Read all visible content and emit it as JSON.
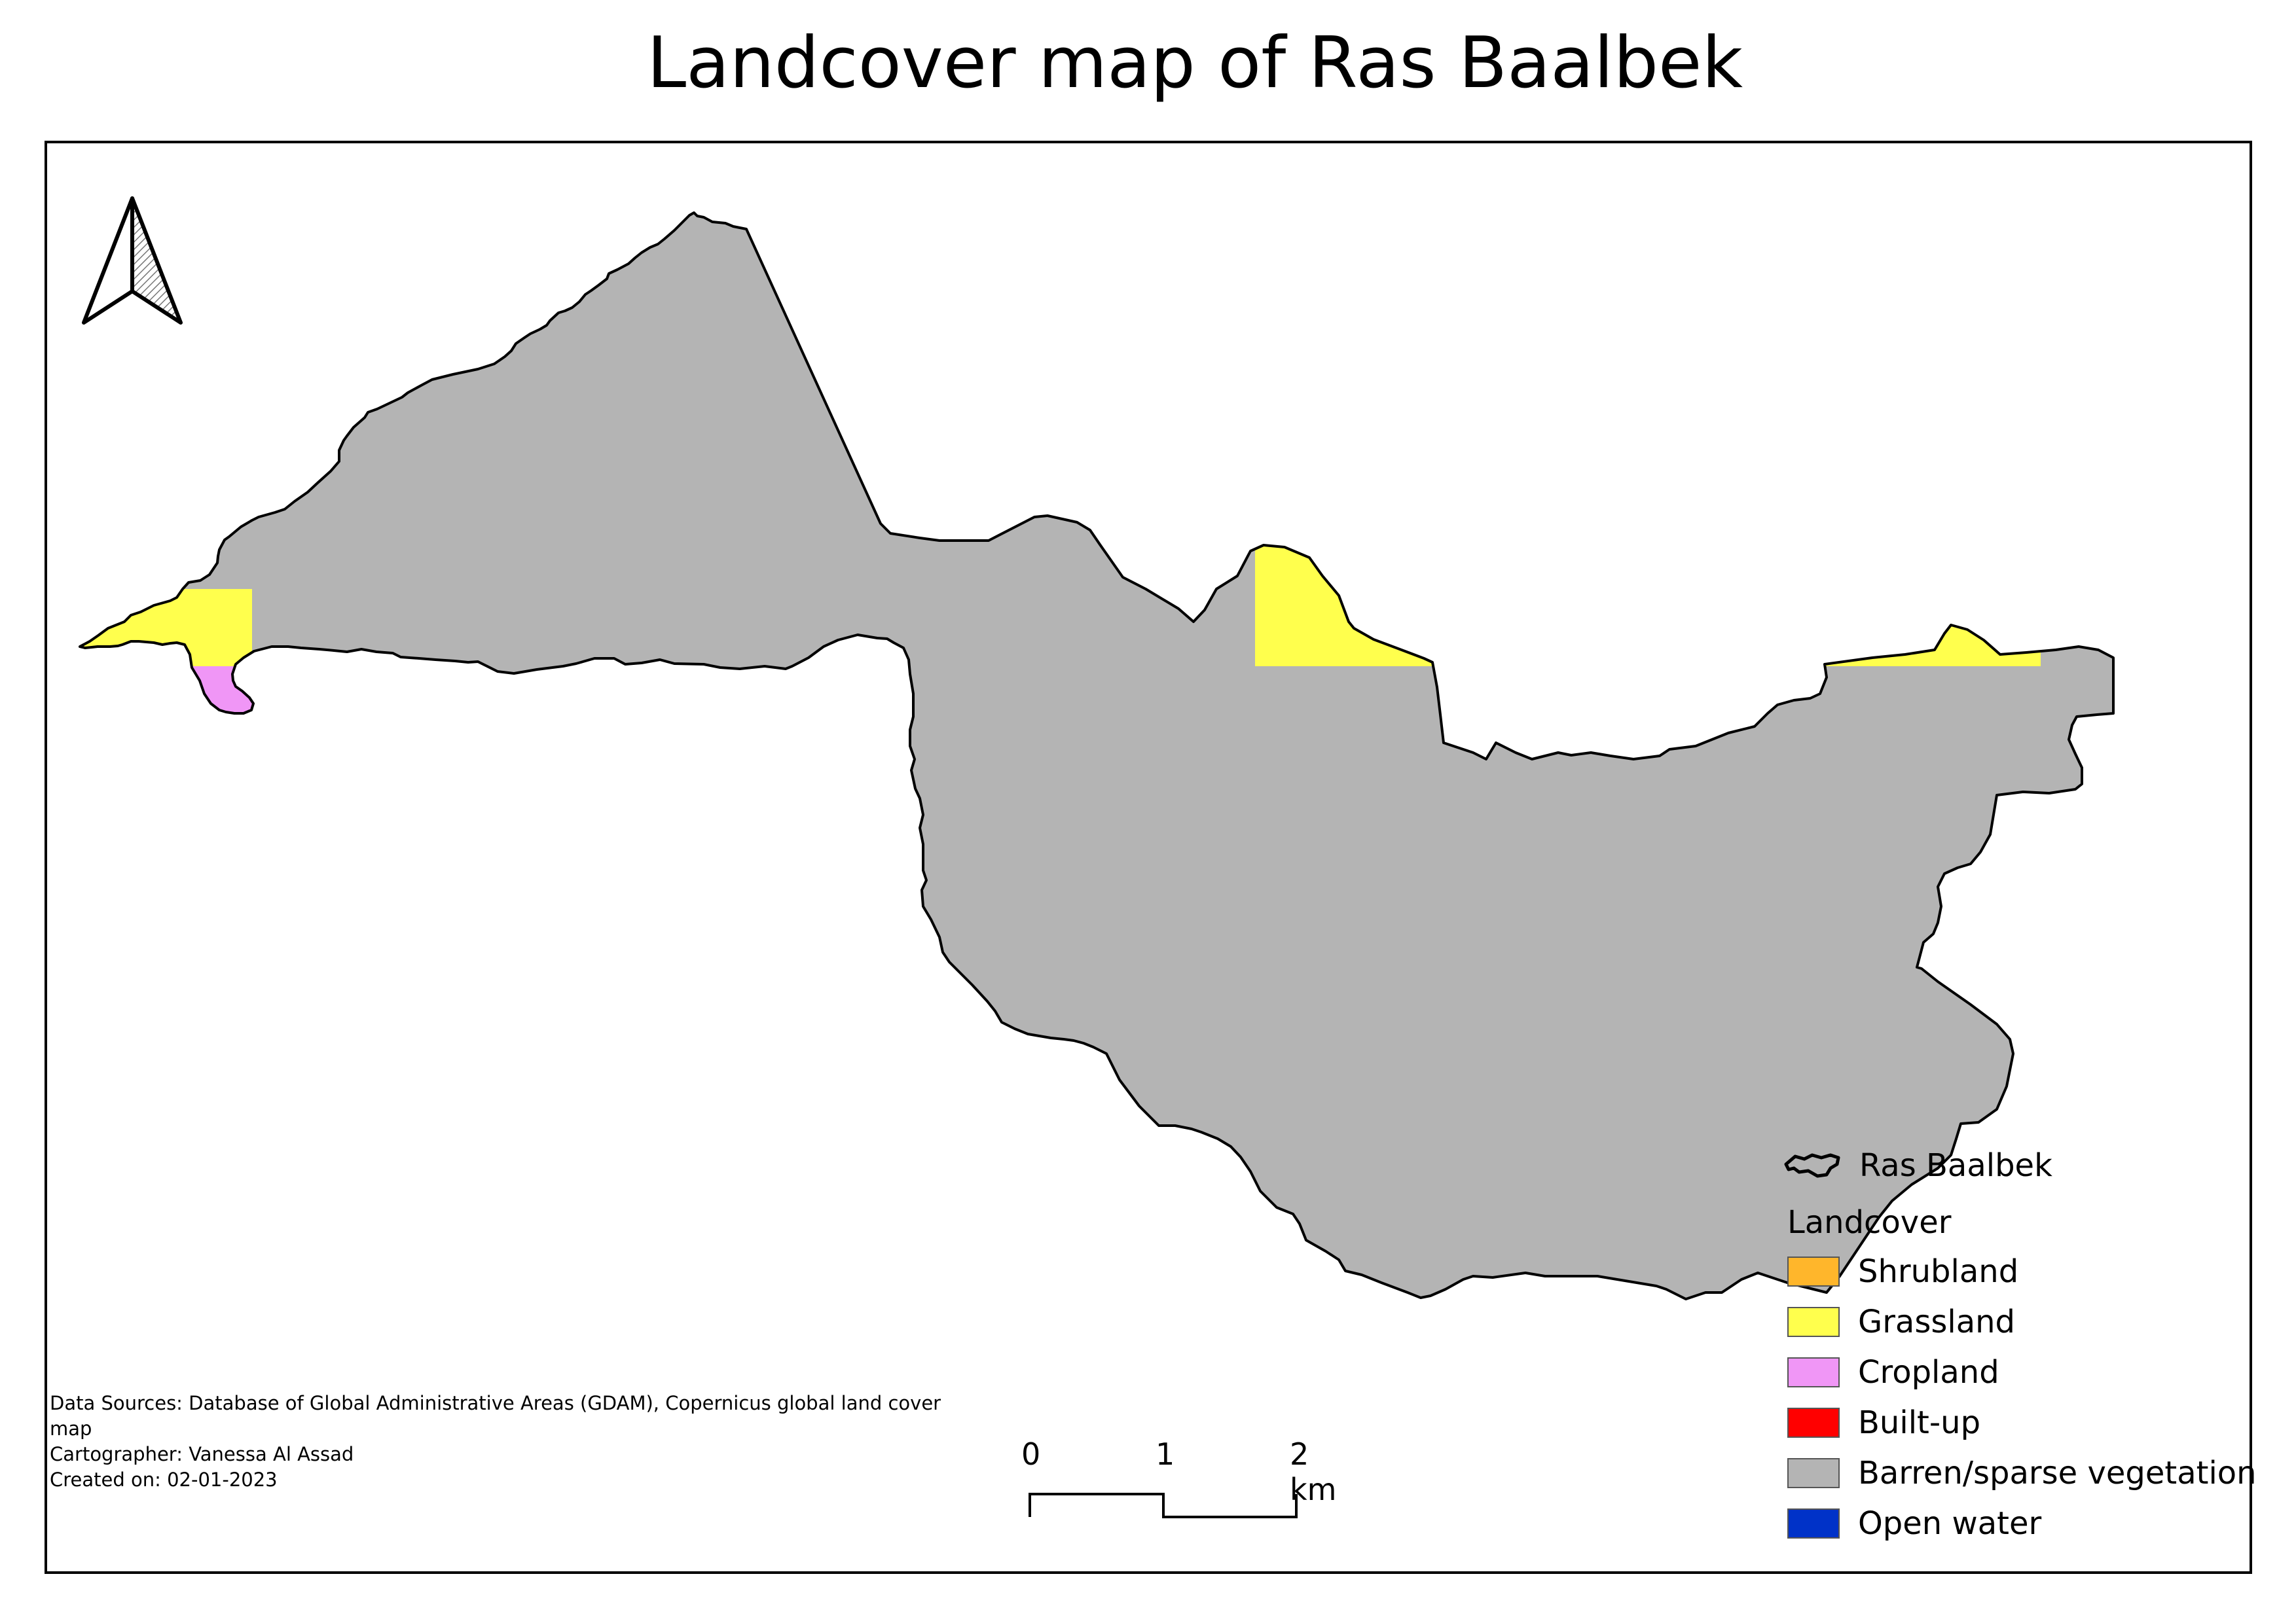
{
  "title": "Landcover map of Ras Baalbek",
  "legend": {
    "boundary_label": "Ras Baalbek",
    "group_title": "Landcover",
    "items": [
      {
        "label": "Shrubland",
        "color": "#ffb62b"
      },
      {
        "label": "Grassland",
        "color": "#ffff4d"
      },
      {
        "label": "Cropland",
        "color": "#f096f6"
      },
      {
        "label": "Built-up",
        "color": "#ff0000"
      },
      {
        "label": "Barren/sparse vegetation",
        "color": "#b4b4b4"
      },
      {
        "label": "Open water",
        "color": "#0032c8"
      }
    ]
  },
  "credits": {
    "sources": "Data Sources:  Database of Global Administrative Areas (GDAM), Copernicus global land cover map",
    "cartographer": "Cartographer: Vanessa Al Assad",
    "created": "Created on: 02-01-2023"
  },
  "scalebar": {
    "labels": [
      "0",
      "1",
      "2 km"
    ]
  },
  "icons": {
    "north_arrow": "north-arrow-icon"
  }
}
